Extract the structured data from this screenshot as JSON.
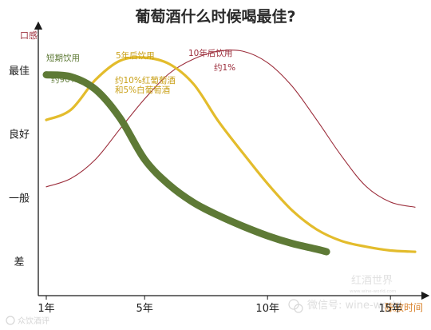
{
  "chart_data": {
    "type": "line",
    "title": "葡萄酒什么时候喝最佳?",
    "ylabel": "口感",
    "xlabel": "陈放时间",
    "y_categories": [
      "差",
      "一般",
      "良好",
      "最佳"
    ],
    "xlim": [
      1,
      16
    ],
    "ylim": [
      0,
      3.5
    ],
    "x_ticks": [
      {
        "value": 1,
        "label": "1年"
      },
      {
        "value": 5,
        "label": "5年"
      },
      {
        "value": 10,
        "label": "10年"
      },
      {
        "value": 15,
        "label": "15年"
      }
    ],
    "series": [
      {
        "name": "短期饮用",
        "share_label": "约90%",
        "color": "#5e7a36",
        "style": "thick",
        "points": [
          [
            1,
            2.93
          ],
          [
            2,
            2.9
          ],
          [
            3,
            2.7
          ],
          [
            4,
            2.25
          ],
          [
            5,
            1.6
          ],
          [
            6,
            1.2
          ],
          [
            7,
            0.92
          ],
          [
            8,
            0.72
          ],
          [
            9,
            0.55
          ],
          [
            10,
            0.4
          ],
          [
            11,
            0.28
          ],
          [
            12,
            0.19
          ],
          [
            12.4,
            0.15
          ]
        ]
      },
      {
        "name": "5年后饮用",
        "share_label": "约10%红葡萄酒\n和5%白葡萄酒",
        "color": "#e3bc2c",
        "style": "medium",
        "points": [
          [
            1,
            2.22
          ],
          [
            2,
            2.38
          ],
          [
            3,
            2.85
          ],
          [
            4,
            3.15
          ],
          [
            5,
            3.2
          ],
          [
            6,
            3.1
          ],
          [
            7,
            2.78
          ],
          [
            8,
            2.2
          ],
          [
            9,
            1.7
          ],
          [
            10,
            1.22
          ],
          [
            11,
            0.8
          ],
          [
            12,
            0.5
          ],
          [
            13,
            0.32
          ],
          [
            14,
            0.23
          ],
          [
            15,
            0.17
          ],
          [
            16,
            0.15
          ]
        ]
      },
      {
        "name": "10年后饮用",
        "share_label": "约1%",
        "color": "#9b2c3a",
        "style": "thin",
        "points": [
          [
            1,
            1.17
          ],
          [
            2,
            1.3
          ],
          [
            3,
            1.6
          ],
          [
            4,
            2.08
          ],
          [
            5,
            2.55
          ],
          [
            6,
            2.95
          ],
          [
            7,
            3.18
          ],
          [
            8,
            3.3
          ],
          [
            9,
            3.3
          ],
          [
            10,
            3.12
          ],
          [
            11,
            2.75
          ],
          [
            12,
            2.22
          ],
          [
            13,
            1.66
          ],
          [
            14,
            1.18
          ],
          [
            15,
            0.93
          ],
          [
            16,
            0.85
          ]
        ]
      }
    ]
  },
  "watermarks": [
    {
      "text": "红酒世界",
      "sub": "www.wine-world.com"
    },
    {
      "text": "微信号: wine-world"
    },
    {
      "text": "众饮酒评"
    }
  ]
}
